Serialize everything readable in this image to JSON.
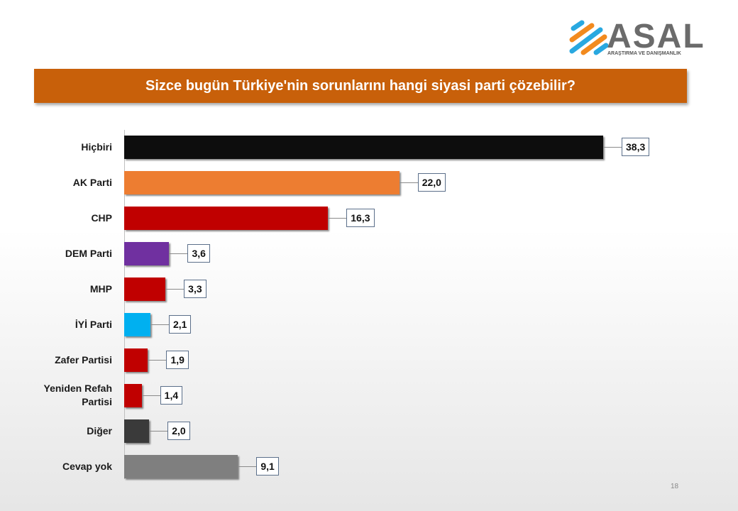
{
  "chart_data": {
    "type": "bar",
    "orientation": "horizontal",
    "title": "Sizce bugün Türkiye'nin sorunlarını hangi siyasi parti çözebilir?",
    "categories": [
      "Hiçbiri",
      "AK Parti",
      "CHP",
      "DEM Parti",
      "MHP",
      "İYİ Parti",
      "Zafer Partisi",
      "Yeniden Refah Partisi",
      "Diğer",
      "Cevap yok"
    ],
    "values": [
      38.3,
      22.0,
      16.3,
      3.6,
      3.3,
      2.1,
      1.9,
      1.4,
      2.0,
      9.1
    ],
    "value_labels": [
      "38,3",
      "22,0",
      "16,3",
      "3,6",
      "3,3",
      "2,1",
      "1,9",
      "1,4",
      "2,0",
      "9,1"
    ],
    "colors": [
      "#0d0d0d",
      "#ed7d31",
      "#c00000",
      "#7030a0",
      "#c00000",
      "#00b0f0",
      "#c00000",
      "#c00000",
      "#3a3a3a",
      "#7f7f7f"
    ]
  },
  "logo": {
    "name": "ASAL",
    "tagline": "ARAŞTIRMA VE DANIŞMANLIK"
  },
  "page_number": 18
}
